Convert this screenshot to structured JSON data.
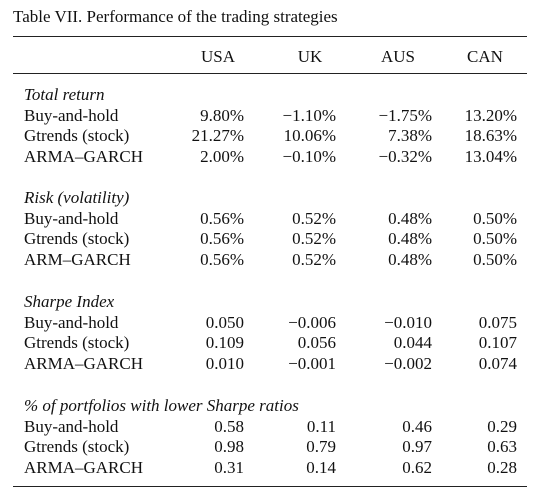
{
  "title": "Table VII.  Performance of the trading strategies",
  "header": [
    "USA",
    "UK",
    "AUS",
    "CAN"
  ],
  "sections": [
    {
      "title": "Total return",
      "rows": [
        [
          "Buy-and-hold",
          "9.80%",
          "−1.10%",
          "−1.75%",
          "13.20%"
        ],
        [
          "Gtrends (stock)",
          "21.27%",
          "10.06%",
          "7.38%",
          "18.63%"
        ],
        [
          "ARMA–GARCH",
          "2.00%",
          "−0.10%",
          "−0.32%",
          "13.04%"
        ]
      ]
    },
    {
      "title": "Risk (volatility)",
      "rows": [
        [
          "Buy-and-hold",
          "0.56%",
          "0.52%",
          "0.48%",
          "0.50%"
        ],
        [
          "Gtrends (stock)",
          "0.56%",
          "0.52%",
          "0.48%",
          "0.50%"
        ],
        [
          "ARM–GARCH",
          "0.56%",
          "0.52%",
          "0.48%",
          "0.50%"
        ]
      ]
    },
    {
      "title": "Sharpe Index",
      "rows": [
        [
          "Buy-and-hold",
          "0.050",
          "−0.006",
          "−0.010",
          "0.075"
        ],
        [
          "Gtrends (stock)",
          "0.109",
          "0.056",
          "0.044",
          "0.107"
        ],
        [
          "ARMA–GARCH",
          "0.010",
          "−0.001",
          "−0.002",
          "0.074"
        ]
      ]
    },
    {
      "title": "% of portfolios with lower Sharpe ratios",
      "rows": [
        [
          "Buy-and-hold",
          "0.58",
          "0.11",
          "0.46",
          "0.29"
        ],
        [
          "Gtrends (stock)",
          "0.98",
          "0.79",
          "0.97",
          "0.63"
        ],
        [
          "ARMA–GARCH",
          "0.31",
          "0.14",
          "0.62",
          "0.28"
        ]
      ]
    }
  ]
}
